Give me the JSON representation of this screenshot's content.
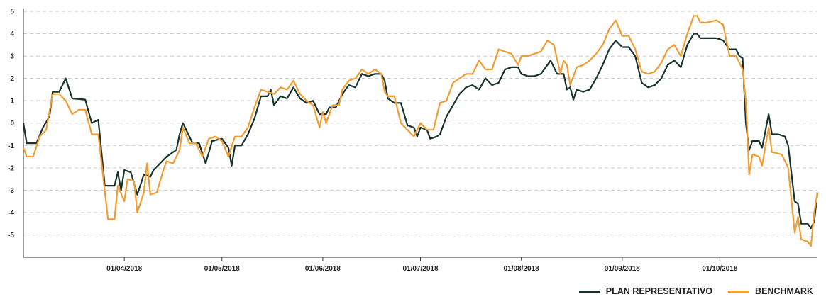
{
  "chart_data": {
    "type": "line",
    "title": "",
    "xlabel": "",
    "ylabel": "",
    "ylim": [
      -6,
      5
    ],
    "yticks": [
      5,
      4,
      3,
      2,
      1,
      0,
      -1,
      -2,
      -3,
      -4,
      -5
    ],
    "xlim": [
      "2018-03-01",
      "2018-10-31"
    ],
    "xticks": [
      {
        "date": "2018-04-01",
        "label": "01/04/2018"
      },
      {
        "date": "2018-05-01",
        "label": "01/05/2018"
      },
      {
        "date": "2018-06-01",
        "label": "01/06/2018"
      },
      {
        "date": "2018-07-01",
        "label": "01/07/2018"
      },
      {
        "date": "2018-08-01",
        "label": "01/08/2018"
      },
      {
        "date": "2018-09-01",
        "label": "01/09/2018"
      },
      {
        "date": "2018-10-01",
        "label": "01/10/2018"
      }
    ],
    "grid": "horizontal dashed",
    "legend_position": "bottom-right",
    "series": [
      {
        "name": "PLAN REPRESENTATIVO",
        "color": "#17332b",
        "points": [
          [
            "2018-03-01",
            0.0
          ],
          [
            "2018-03-02",
            -0.9
          ],
          [
            "2018-03-05",
            -0.9
          ],
          [
            "2018-03-07",
            -0.2
          ],
          [
            "2018-03-09",
            0.3
          ],
          [
            "2018-03-10",
            1.4
          ],
          [
            "2018-03-12",
            1.4
          ],
          [
            "2018-03-14",
            2.0
          ],
          [
            "2018-03-16",
            1.1
          ],
          [
            "2018-03-20",
            1.05
          ],
          [
            "2018-03-22",
            0.0
          ],
          [
            "2018-03-24",
            0.15
          ],
          [
            "2018-03-26",
            -2.8
          ],
          [
            "2018-03-29",
            -2.8
          ],
          [
            "2018-03-30",
            -2.2
          ],
          [
            "2018-03-31",
            -3.0
          ],
          [
            "2018-04-01",
            -2.1
          ],
          [
            "2018-04-03",
            -2.2
          ],
          [
            "2018-04-05",
            -3.2
          ],
          [
            "2018-04-07",
            -2.3
          ],
          [
            "2018-04-09",
            -2.4
          ],
          [
            "2018-04-10",
            -2.1
          ],
          [
            "2018-04-12",
            -1.8
          ],
          [
            "2018-04-14",
            -1.5
          ],
          [
            "2018-04-17",
            -1.2
          ],
          [
            "2018-04-18",
            -0.5
          ],
          [
            "2018-04-19",
            0.0
          ],
          [
            "2018-04-22",
            -0.9
          ],
          [
            "2018-04-24",
            -0.9
          ],
          [
            "2018-04-26",
            -1.8
          ],
          [
            "2018-04-28",
            -0.8
          ],
          [
            "2018-05-01",
            -0.7
          ],
          [
            "2018-05-03",
            -1.1
          ],
          [
            "2018-05-04",
            -1.9
          ],
          [
            "2018-05-05",
            -1.0
          ],
          [
            "2018-05-07",
            -1.0
          ],
          [
            "2018-05-09",
            -0.5
          ],
          [
            "2018-05-11",
            0.2
          ],
          [
            "2018-05-13",
            1.2
          ],
          [
            "2018-05-15",
            1.2
          ],
          [
            "2018-05-16",
            1.5
          ],
          [
            "2018-05-17",
            0.8
          ],
          [
            "2018-05-19",
            1.2
          ],
          [
            "2018-05-21",
            1.1
          ],
          [
            "2018-05-23",
            1.6
          ],
          [
            "2018-05-25",
            1.1
          ],
          [
            "2018-05-27",
            0.9
          ],
          [
            "2018-05-29",
            1.0
          ],
          [
            "2018-05-31",
            0.4
          ],
          [
            "2018-06-02",
            0.4
          ],
          [
            "2018-06-03",
            0.7
          ],
          [
            "2018-06-05",
            0.7
          ],
          [
            "2018-06-07",
            1.3
          ],
          [
            "2018-06-09",
            1.7
          ],
          [
            "2018-06-11",
            1.6
          ],
          [
            "2018-06-13",
            2.2
          ],
          [
            "2018-06-15",
            2.1
          ],
          [
            "2018-06-17",
            2.2
          ],
          [
            "2018-06-19",
            2.2
          ],
          [
            "2018-06-20",
            1.9
          ],
          [
            "2018-06-21",
            1.1
          ],
          [
            "2018-06-23",
            0.9
          ],
          [
            "2018-06-25",
            0.9
          ],
          [
            "2018-06-27",
            -0.1
          ],
          [
            "2018-06-29",
            -0.2
          ],
          [
            "2018-06-30",
            -0.6
          ],
          [
            "2018-07-01",
            -0.2
          ],
          [
            "2018-07-03",
            -0.3
          ],
          [
            "2018-07-04",
            -0.7
          ],
          [
            "2018-07-06",
            -0.6
          ],
          [
            "2018-07-07",
            -0.5
          ],
          [
            "2018-07-09",
            0.3
          ],
          [
            "2018-07-11",
            0.8
          ],
          [
            "2018-07-13",
            1.3
          ],
          [
            "2018-07-15",
            1.6
          ],
          [
            "2018-07-17",
            1.7
          ],
          [
            "2018-07-19",
            1.5
          ],
          [
            "2018-07-21",
            2.0
          ],
          [
            "2018-07-23",
            1.7
          ],
          [
            "2018-07-25",
            1.8
          ],
          [
            "2018-07-27",
            2.4
          ],
          [
            "2018-07-29",
            2.5
          ],
          [
            "2018-07-31",
            2.5
          ],
          [
            "2018-08-01",
            2.2
          ],
          [
            "2018-08-03",
            2.1
          ],
          [
            "2018-08-05",
            2.1
          ],
          [
            "2018-08-07",
            2.2
          ],
          [
            "2018-08-09",
            2.6
          ],
          [
            "2018-08-10",
            2.8
          ],
          [
            "2018-08-12",
            2.2
          ],
          [
            "2018-08-14",
            2.2
          ],
          [
            "2018-08-15",
            1.5
          ],
          [
            "2018-08-16",
            1.6
          ],
          [
            "2018-08-17",
            1.05
          ],
          [
            "2018-08-18",
            1.5
          ],
          [
            "2018-08-20",
            1.4
          ],
          [
            "2018-08-22",
            1.5
          ],
          [
            "2018-08-24",
            2.0
          ],
          [
            "2018-08-26",
            2.6
          ],
          [
            "2018-08-28",
            3.3
          ],
          [
            "2018-08-30",
            3.7
          ],
          [
            "2018-09-01",
            3.4
          ],
          [
            "2018-09-03",
            3.4
          ],
          [
            "2018-09-05",
            3.0
          ],
          [
            "2018-09-07",
            1.8
          ],
          [
            "2018-09-09",
            1.6
          ],
          [
            "2018-09-11",
            1.7
          ],
          [
            "2018-09-13",
            2.0
          ],
          [
            "2018-09-15",
            2.6
          ],
          [
            "2018-09-17",
            2.8
          ],
          [
            "2018-09-19",
            2.5
          ],
          [
            "2018-09-21",
            3.5
          ],
          [
            "2018-09-23",
            4.0
          ],
          [
            "2018-09-24",
            4.0
          ],
          [
            "2018-09-25",
            3.8
          ],
          [
            "2018-09-27",
            3.8
          ],
          [
            "2018-09-30",
            3.8
          ],
          [
            "2018-10-02",
            3.7
          ],
          [
            "2018-10-04",
            3.3
          ],
          [
            "2018-10-06",
            3.3
          ],
          [
            "2018-10-07",
            3.0
          ],
          [
            "2018-10-08",
            2.9
          ],
          [
            "2018-10-09",
            0.0
          ],
          [
            "2018-10-10",
            -1.2
          ],
          [
            "2018-10-11",
            -0.8
          ],
          [
            "2018-10-13",
            -0.8
          ],
          [
            "2018-10-14",
            -1.1
          ],
          [
            "2018-10-16",
            0.4
          ],
          [
            "2018-10-17",
            -0.5
          ],
          [
            "2018-10-19",
            -0.5
          ],
          [
            "2018-10-21",
            -0.6
          ],
          [
            "2018-10-22",
            -1.0
          ],
          [
            "2018-10-24",
            -3.5
          ],
          [
            "2018-10-25",
            -3.6
          ],
          [
            "2018-10-26",
            -4.5
          ],
          [
            "2018-10-28",
            -4.5
          ],
          [
            "2018-10-29",
            -4.7
          ],
          [
            "2018-10-30",
            -4.4
          ],
          [
            "2018-10-31",
            -3.1
          ]
        ]
      },
      {
        "name": "BENCHMARK",
        "color": "#f39c32",
        "points": [
          [
            "2018-03-01",
            -1.1
          ],
          [
            "2018-03-02",
            -1.5
          ],
          [
            "2018-03-04",
            -1.5
          ],
          [
            "2018-03-06",
            -0.6
          ],
          [
            "2018-03-08",
            -0.3
          ],
          [
            "2018-03-10",
            1.3
          ],
          [
            "2018-03-12",
            1.3
          ],
          [
            "2018-03-14",
            1.0
          ],
          [
            "2018-03-16",
            0.4
          ],
          [
            "2018-03-18",
            0.6
          ],
          [
            "2018-03-20",
            0.6
          ],
          [
            "2018-03-22",
            -0.5
          ],
          [
            "2018-03-24",
            -0.5
          ],
          [
            "2018-03-27",
            -4.3
          ],
          [
            "2018-03-29",
            -4.3
          ],
          [
            "2018-03-30",
            -2.8
          ],
          [
            "2018-04-01",
            -3.5
          ],
          [
            "2018-04-02",
            -2.5
          ],
          [
            "2018-04-04",
            -2.6
          ],
          [
            "2018-04-05",
            -4.0
          ],
          [
            "2018-04-07",
            -3.1
          ],
          [
            "2018-04-08",
            -1.8
          ],
          [
            "2018-04-09",
            -3.2
          ],
          [
            "2018-04-11",
            -3.1
          ],
          [
            "2018-04-13",
            -2.1
          ],
          [
            "2018-04-14",
            -1.7
          ],
          [
            "2018-04-16",
            -1.8
          ],
          [
            "2018-04-18",
            -1.2
          ],
          [
            "2018-04-19",
            -0.2
          ],
          [
            "2018-04-21",
            -0.9
          ],
          [
            "2018-04-23",
            -0.9
          ],
          [
            "2018-04-25",
            -1.5
          ],
          [
            "2018-04-27",
            -0.7
          ],
          [
            "2018-04-29",
            -0.6
          ],
          [
            "2018-05-01",
            -0.8
          ],
          [
            "2018-05-03",
            -1.5
          ],
          [
            "2018-05-05",
            -0.6
          ],
          [
            "2018-05-07",
            -0.6
          ],
          [
            "2018-05-09",
            -0.2
          ],
          [
            "2018-05-11",
            0.7
          ],
          [
            "2018-05-13",
            1.5
          ],
          [
            "2018-05-15",
            1.4
          ],
          [
            "2018-05-17",
            1.3
          ],
          [
            "2018-05-19",
            1.6
          ],
          [
            "2018-05-21",
            1.5
          ],
          [
            "2018-05-23",
            1.9
          ],
          [
            "2018-05-25",
            1.3
          ],
          [
            "2018-05-27",
            1.0
          ],
          [
            "2018-05-29",
            0.8
          ],
          [
            "2018-05-31",
            -0.2
          ],
          [
            "2018-06-01",
            0.5
          ],
          [
            "2018-06-02",
            0.0
          ],
          [
            "2018-06-04",
            0.8
          ],
          [
            "2018-06-06",
            0.8
          ],
          [
            "2018-06-07",
            1.5
          ],
          [
            "2018-06-09",
            1.9
          ],
          [
            "2018-06-11",
            2.0
          ],
          [
            "2018-06-13",
            2.4
          ],
          [
            "2018-06-15",
            2.2
          ],
          [
            "2018-06-17",
            2.4
          ],
          [
            "2018-06-19",
            2.2
          ],
          [
            "2018-06-20",
            1.4
          ],
          [
            "2018-06-21",
            1.2
          ],
          [
            "2018-06-23",
            1.2
          ],
          [
            "2018-06-25",
            0.0
          ],
          [
            "2018-06-27",
            -0.3
          ],
          [
            "2018-06-29",
            -0.6
          ],
          [
            "2018-07-01",
            0.0
          ],
          [
            "2018-07-03",
            -0.3
          ],
          [
            "2018-07-05",
            -0.3
          ],
          [
            "2018-07-07",
            0.9
          ],
          [
            "2018-07-09",
            1.0
          ],
          [
            "2018-07-11",
            1.8
          ],
          [
            "2018-07-13",
            2.0
          ],
          [
            "2018-07-15",
            2.2
          ],
          [
            "2018-07-17",
            2.2
          ],
          [
            "2018-07-19",
            2.8
          ],
          [
            "2018-07-21",
            2.4
          ],
          [
            "2018-07-23",
            2.4
          ],
          [
            "2018-07-25",
            3.3
          ],
          [
            "2018-07-27",
            3.2
          ],
          [
            "2018-07-29",
            3.1
          ],
          [
            "2018-07-31",
            2.6
          ],
          [
            "2018-08-01",
            3.0
          ],
          [
            "2018-08-03",
            3.0
          ],
          [
            "2018-08-05",
            3.1
          ],
          [
            "2018-08-07",
            3.2
          ],
          [
            "2018-08-09",
            3.7
          ],
          [
            "2018-08-11",
            3.5
          ],
          [
            "2018-08-13",
            2.2
          ],
          [
            "2018-08-14",
            2.8
          ],
          [
            "2018-08-15",
            2.6
          ],
          [
            "2018-08-16",
            1.7
          ],
          [
            "2018-08-18",
            2.5
          ],
          [
            "2018-08-20",
            2.6
          ],
          [
            "2018-08-22",
            2.8
          ],
          [
            "2018-08-24",
            3.1
          ],
          [
            "2018-08-26",
            3.5
          ],
          [
            "2018-08-28",
            4.2
          ],
          [
            "2018-08-30",
            4.6
          ],
          [
            "2018-09-01",
            3.9
          ],
          [
            "2018-09-03",
            3.9
          ],
          [
            "2018-09-05",
            3.3
          ],
          [
            "2018-09-07",
            2.3
          ],
          [
            "2018-09-09",
            2.2
          ],
          [
            "2018-09-11",
            2.3
          ],
          [
            "2018-09-13",
            2.7
          ],
          [
            "2018-09-15",
            3.3
          ],
          [
            "2018-09-17",
            3.5
          ],
          [
            "2018-09-19",
            3.0
          ],
          [
            "2018-09-21",
            4.0
          ],
          [
            "2018-09-23",
            4.8
          ],
          [
            "2018-09-24",
            4.8
          ],
          [
            "2018-09-25",
            4.5
          ],
          [
            "2018-09-27",
            4.5
          ],
          [
            "2018-09-30",
            4.6
          ],
          [
            "2018-10-02",
            4.4
          ],
          [
            "2018-10-04",
            3.0
          ],
          [
            "2018-10-06",
            3.0
          ],
          [
            "2018-10-08",
            2.4
          ],
          [
            "2018-10-09",
            1.0
          ],
          [
            "2018-10-10",
            -2.3
          ],
          [
            "2018-10-11",
            -1.4
          ],
          [
            "2018-10-13",
            -1.5
          ],
          [
            "2018-10-14",
            -1.9
          ],
          [
            "2018-10-16",
            -0.2
          ],
          [
            "2018-10-17",
            -1.3
          ],
          [
            "2018-10-20",
            -1.4
          ],
          [
            "2018-10-22",
            -2.0
          ],
          [
            "2018-10-24",
            -4.9
          ],
          [
            "2018-10-25",
            -4.2
          ],
          [
            "2018-10-26",
            -5.2
          ],
          [
            "2018-10-28",
            -5.3
          ],
          [
            "2018-10-29",
            -5.5
          ],
          [
            "2018-10-30",
            -4.0
          ],
          [
            "2018-10-31",
            -3.1
          ]
        ]
      }
    ]
  }
}
